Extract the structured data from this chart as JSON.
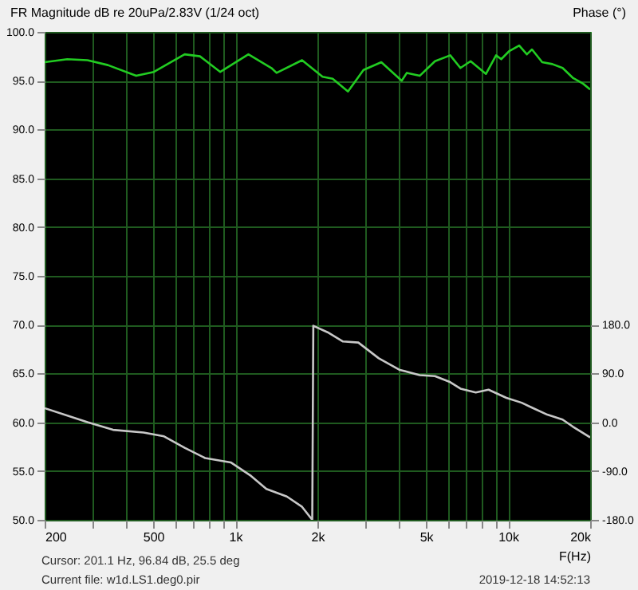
{
  "chart_data": {
    "type": "line",
    "ylabel": "FR Magnitude dB re 20uPa/2.83V (1/24 oct)",
    "y2label": "Phase (°)",
    "xlabel": "F(Hz)",
    "annotations": [
      "Cursor: 201.1 Hz, 96.84 dB, 25.5 deg",
      "Current file: w1d.LS1.deg0.pir",
      "2019-12-18  14:52:13"
    ],
    "log": "x",
    "xlim": [
      200,
      20000
    ],
    "xticks": [
      {
        "value": 200,
        "label": "200"
      },
      {
        "value": 300,
        "label": null
      },
      {
        "value": 400,
        "label": null
      },
      {
        "value": 500,
        "label": "500"
      },
      {
        "value": 600,
        "label": null
      },
      {
        "value": 700,
        "label": null
      },
      {
        "value": 800,
        "label": null
      },
      {
        "value": 900,
        "label": null
      },
      {
        "value": 1000,
        "label": "1k"
      },
      {
        "value": 2000,
        "label": "2k"
      },
      {
        "value": 3000,
        "label": null
      },
      {
        "value": 4000,
        "label": null
      },
      {
        "value": 5000,
        "label": "5k"
      },
      {
        "value": 6000,
        "label": null
      },
      {
        "value": 7000,
        "label": null
      },
      {
        "value": 8000,
        "label": null
      },
      {
        "value": 9000,
        "label": null
      },
      {
        "value": 10000,
        "label": "10k"
      },
      {
        "value": 20000,
        "label": "20k"
      }
    ],
    "ylim": [
      50,
      100
    ],
    "yticks": [
      {
        "value": 50,
        "label": "50.0"
      },
      {
        "value": 55,
        "label": "55.0"
      },
      {
        "value": 60,
        "label": "60.0"
      },
      {
        "value": 65,
        "label": "65.0"
      },
      {
        "value": 70,
        "label": "70.0"
      },
      {
        "value": 75,
        "label": "75.0"
      },
      {
        "value": 80,
        "label": "80.0"
      },
      {
        "value": 85,
        "label": "85.0"
      },
      {
        "value": 90,
        "label": "90.0"
      },
      {
        "value": 95,
        "label": "95.0"
      },
      {
        "value": 100,
        "label": "100.0"
      }
    ],
    "y2lim": [
      -180,
      720
    ],
    "y2ticks": [
      {
        "value": -180,
        "label": "-180.0"
      },
      {
        "value": -90,
        "label": "-90.0"
      },
      {
        "value": 0,
        "label": "0.0"
      },
      {
        "value": 90,
        "label": "90.0"
      },
      {
        "value": 180,
        "label": "180.0"
      }
    ],
    "grid": true,
    "marker": "none",
    "line_style": "solid",
    "series": [
      {
        "color": "#22cc22",
        "x": [
          200,
          242,
          287,
          341,
          433,
          503,
          652,
          742,
          881,
          1117,
          1356,
          1417,
          1757,
          2089,
          2275,
          2589,
          2951,
          3430,
          4075,
          4255,
          4743,
          5397,
          6138,
          6690,
          7290,
          8300,
          9040,
          9440,
          10070,
          10990,
          11720,
          12240,
          13340,
          14530,
          15850,
          17270,
          18830,
          20000
        ],
        "values": [
          96.9,
          97.2,
          97.1,
          96.6,
          95.5,
          95.9,
          97.7,
          97.5,
          95.9,
          97.7,
          96.3,
          95.8,
          97.1,
          95.4,
          95.2,
          93.9,
          96.1,
          96.9,
          95.0,
          95.8,
          95.5,
          97.0,
          97.6,
          96.3,
          97.0,
          95.7,
          97.6,
          97.2,
          98.0,
          98.6,
          97.7,
          98.2,
          96.9,
          96.7,
          96.3,
          95.3,
          94.7,
          94.1
        ]
      },
      {
        "color": "#c8c8c8",
        "axis": "y2",
        "x": [
          200,
          287,
          356,
          461,
          548,
          652,
          775,
          962,
          1142,
          1300,
          1545,
          1757,
          1915,
          1932,
          2179,
          2482,
          2825,
          3357,
          3990,
          4743,
          5397,
          6138,
          6690,
          7614,
          8480,
          9860,
          11220,
          12240,
          13930,
          15850,
          17270,
          20000
        ],
        "values": [
          26,
          0,
          -14,
          -19,
          -26,
          -47,
          -66,
          -74,
          -99,
          -123,
          -137,
          -156,
          -180,
          178,
          166,
          149,
          147,
          118,
          97,
          87,
          85,
          74,
          62,
          55,
          60,
          45,
          36,
          27,
          14,
          5,
          -8,
          -28
        ]
      }
    ]
  }
}
